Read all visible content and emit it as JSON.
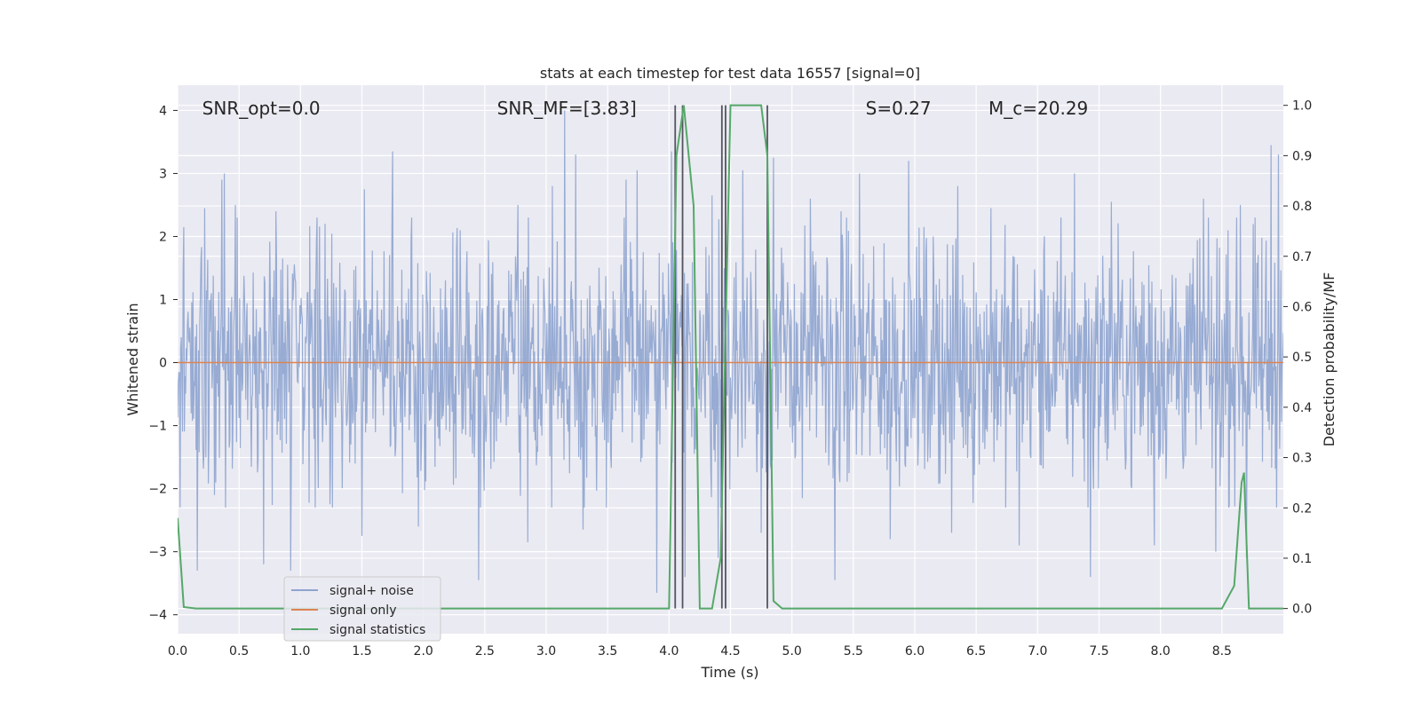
{
  "chart_data": {
    "type": "line",
    "title": "stats at each timestep for test data 16557 [signal=0]",
    "xlabel": "Time (s)",
    "ylabel": "Whitened strain",
    "y2label": "Detection probability/MF",
    "xlim": [
      0,
      9.0
    ],
    "ylim": [
      -4.3,
      4.4
    ],
    "y2lim": [
      -0.05,
      1.04
    ],
    "xticks": [
      0.0,
      0.5,
      1.0,
      1.5,
      2.0,
      2.5,
      3.0,
      3.5,
      4.0,
      4.5,
      5.0,
      5.5,
      6.0,
      6.5,
      7.0,
      7.5,
      8.0,
      8.5
    ],
    "xtick_labels": [
      "0.0",
      "0.5",
      "1.0",
      "1.5",
      "2.0",
      "2.5",
      "3.0",
      "3.5",
      "4.0",
      "4.5",
      "5.0",
      "5.5",
      "6.0",
      "6.5",
      "7.0",
      "7.5",
      "8.0",
      "8.5"
    ],
    "yticks": [
      4,
      3,
      2,
      1,
      0,
      -1,
      -2,
      -3,
      -4
    ],
    "ytick_labels": [
      "4",
      "3",
      "2",
      "1",
      "0",
      "−1",
      "−2",
      "−3",
      "−4"
    ],
    "y2ticks": [
      1.0,
      0.9,
      0.8,
      0.7,
      0.6,
      0.5,
      0.4,
      0.3,
      0.2,
      0.1,
      0.0
    ],
    "y2tick_labels": [
      "1.0",
      "0.9",
      "0.8",
      "0.7",
      "0.6",
      "0.5",
      "0.4",
      "0.3",
      "0.2",
      "0.1",
      "0.0"
    ],
    "grid": true,
    "legend_position": "lower-left",
    "annotations": [
      {
        "text": "SNR_opt=0.0",
        "x": 0.2,
        "y": 4.05
      },
      {
        "text": "SNR_MF=[3.83]",
        "x": 2.6,
        "y": 4.05
      },
      {
        "text": "S=0.27",
        "x": 5.6,
        "y": 4.05
      },
      {
        "text": "M_c=20.29",
        "x": 6.6,
        "y": 4.05
      }
    ],
    "series": [
      {
        "name": "signal+ noise",
        "color": "#8ea4cf",
        "kind": "noise",
        "amplitude_envelope": [
          2.0,
          1.8
        ],
        "peaks_high": [
          [
            0.05,
            2.15
          ],
          [
            0.22,
            2.45
          ],
          [
            0.36,
            2.9
          ],
          [
            0.38,
            3.0
          ],
          [
            0.47,
            2.5
          ],
          [
            0.8,
            2.4
          ],
          [
            1.2,
            2.2
          ],
          [
            1.52,
            2.75
          ],
          [
            1.75,
            3.35
          ],
          [
            2.3,
            2.1
          ],
          [
            2.77,
            2.5
          ],
          [
            3.05,
            2.8
          ],
          [
            3.15,
            4.0
          ],
          [
            3.24,
            3.3
          ],
          [
            3.65,
            2.9
          ],
          [
            3.74,
            3.05
          ],
          [
            4.02,
            3.35
          ],
          [
            4.35,
            2.65
          ],
          [
            4.6,
            3.05
          ],
          [
            4.85,
            3.25
          ],
          [
            5.15,
            2.6
          ],
          [
            5.4,
            2.4
          ],
          [
            5.55,
            3.0
          ],
          [
            5.95,
            3.2
          ],
          [
            6.35,
            2.8
          ],
          [
            6.62,
            2.45
          ],
          [
            6.85,
            2.6
          ],
          [
            7.3,
            3.0
          ],
          [
            7.6,
            2.55
          ],
          [
            7.95,
            2.95
          ],
          [
            8.35,
            2.6
          ],
          [
            8.65,
            2.5
          ],
          [
            8.9,
            3.45
          ],
          [
            8.96,
            3.3
          ]
        ],
        "peaks_low": [
          [
            0.16,
            -3.3
          ],
          [
            0.3,
            -2.1
          ],
          [
            0.7,
            -3.2
          ],
          [
            0.92,
            -3.3
          ],
          [
            1.12,
            -2.3
          ],
          [
            1.5,
            -2.75
          ],
          [
            1.96,
            -2.6
          ],
          [
            2.45,
            -3.45
          ],
          [
            2.85,
            -2.85
          ],
          [
            3.3,
            -2.65
          ],
          [
            3.9,
            -3.65
          ],
          [
            4.13,
            -3.4
          ],
          [
            4.4,
            -3.1
          ],
          [
            4.75,
            -2.7
          ],
          [
            5.35,
            -3.45
          ],
          [
            5.8,
            -2.8
          ],
          [
            6.3,
            -2.7
          ],
          [
            6.85,
            -2.9
          ],
          [
            7.43,
            -3.4
          ],
          [
            7.95,
            -2.9
          ],
          [
            8.45,
            -3.0
          ],
          [
            8.7,
            -3.1
          ]
        ]
      },
      {
        "name": "signal only",
        "color": "#dd8452",
        "x": [
          0.0,
          9.0
        ],
        "y": [
          0.0,
          0.0
        ]
      },
      {
        "name": "signal statistics",
        "color": "#55a868",
        "axis": "y2",
        "x": [
          0.0,
          0.05,
          0.15,
          0.5,
          1.0,
          2.0,
          3.0,
          3.5,
          4.0,
          4.06,
          4.12,
          4.2,
          4.25,
          4.35,
          4.42,
          4.5,
          4.6,
          4.75,
          4.8,
          4.85,
          4.92,
          5.0,
          6.0,
          7.0,
          8.0,
          8.5,
          8.6,
          8.66,
          8.68,
          8.72,
          9.0
        ],
        "y": [
          0.18,
          0.003,
          0.0,
          0.0,
          0.0,
          0.0,
          0.0,
          0.0,
          0.0,
          0.9,
          1.0,
          0.8,
          0.0,
          0.0,
          0.1,
          1.0,
          1.0,
          1.0,
          0.9,
          0.015,
          0.0,
          0.0,
          0.0,
          0.0,
          0.0,
          0.0,
          0.045,
          0.25,
          0.27,
          0.0,
          0.0
        ]
      }
    ],
    "vertical_markers": {
      "color": "#555560",
      "x": [
        4.05,
        4.11,
        4.43,
        4.46,
        4.8
      ]
    }
  }
}
